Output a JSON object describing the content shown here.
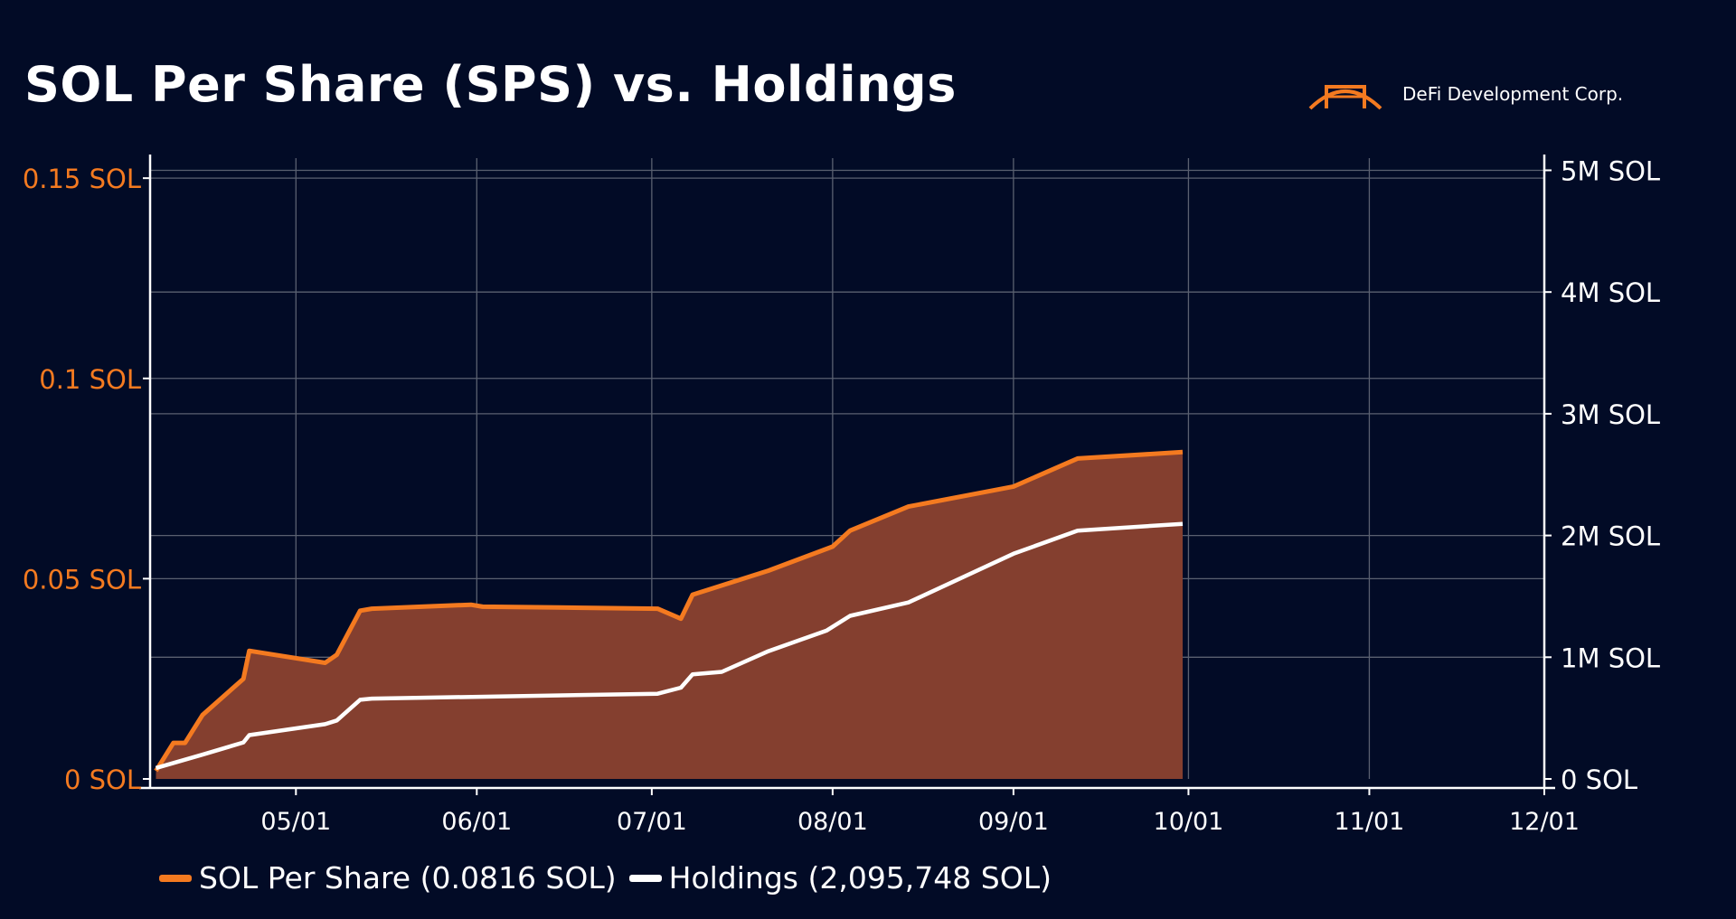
{
  "title": "SOL Per Share (SPS) vs. Holdings",
  "brand": {
    "name": "DeFi Development Corp.",
    "logo_icon": "bridge-icon",
    "logo_color": "#f47a20"
  },
  "colors": {
    "background": "#020b26",
    "sps": "#f47a20",
    "sps_fill": "#843f2f",
    "holdings": "#ffffff",
    "grid": "#5a6070",
    "left_axis_text": "#f47a20",
    "right_axis_text": "#ffffff"
  },
  "chart_data": {
    "type": "line",
    "x_axis": {
      "range": [
        "2025-04-06",
        "2025-12-01"
      ],
      "tick_labels": [
        "05/01",
        "06/01",
        "07/01",
        "08/01",
        "09/01",
        "10/01",
        "11/01",
        "12/01"
      ],
      "tick_dates": [
        "2025-05-01",
        "2025-06-01",
        "2025-07-01",
        "2025-08-01",
        "2025-09-01",
        "2025-10-01",
        "2025-11-01",
        "2025-12-01"
      ]
    },
    "y_left": {
      "range": [
        0,
        0.155
      ],
      "ticks": [
        0,
        0.05,
        0.1,
        0.15
      ],
      "tick_labels": [
        "0 SOL",
        "0.05 SOL",
        "0.1 SOL",
        "0.15 SOL"
      ]
    },
    "y_right": {
      "range": [
        0,
        5.1
      ],
      "ticks": [
        0,
        1,
        2,
        3,
        4,
        5
      ],
      "tick_labels": [
        "0 SOL",
        "1M SOL",
        "2M SOL",
        "3M SOL",
        "4M SOL",
        "5M SOL"
      ],
      "unit": "million SOL"
    },
    "grid": true,
    "legend_position": "bottom-left",
    "series": [
      {
        "name": "SOL Per Share (0.0816 SOL)",
        "axis": "left",
        "fill": true,
        "points": [
          [
            "2025-04-07",
            0.002
          ],
          [
            "2025-04-10",
            0.009
          ],
          [
            "2025-04-12",
            0.009
          ],
          [
            "2025-04-15",
            0.016
          ],
          [
            "2025-04-22",
            0.025
          ],
          [
            "2025-04-23",
            0.032
          ],
          [
            "2025-05-06",
            0.029
          ],
          [
            "2025-05-08",
            0.031
          ],
          [
            "2025-05-12",
            0.042
          ],
          [
            "2025-05-14",
            0.0425
          ],
          [
            "2025-05-31",
            0.0435
          ],
          [
            "2025-06-02",
            0.043
          ],
          [
            "2025-06-15",
            0.0428
          ],
          [
            "2025-07-02",
            0.0425
          ],
          [
            "2025-07-06",
            0.04
          ],
          [
            "2025-07-08",
            0.046
          ],
          [
            "2025-07-21",
            0.052
          ],
          [
            "2025-08-01",
            0.058
          ],
          [
            "2025-08-04",
            0.062
          ],
          [
            "2025-08-14",
            0.068
          ],
          [
            "2025-09-01",
            0.073
          ],
          [
            "2025-09-12",
            0.08
          ],
          [
            "2025-09-30",
            0.0816
          ]
        ]
      },
      {
        "name": "Holdings (2,095,748 SOL)",
        "axis": "right",
        "fill": false,
        "points": [
          [
            "2025-04-07",
            0.09
          ],
          [
            "2025-04-15",
            0.2
          ],
          [
            "2025-04-22",
            0.3
          ],
          [
            "2025-04-23",
            0.36
          ],
          [
            "2025-05-06",
            0.45
          ],
          [
            "2025-05-08",
            0.48
          ],
          [
            "2025-05-12",
            0.65
          ],
          [
            "2025-05-14",
            0.66
          ],
          [
            "2025-07-02",
            0.7
          ],
          [
            "2025-07-06",
            0.75
          ],
          [
            "2025-07-08",
            0.86
          ],
          [
            "2025-07-13",
            0.88
          ],
          [
            "2025-07-21",
            1.05
          ],
          [
            "2025-07-31",
            1.22
          ],
          [
            "2025-08-04",
            1.34
          ],
          [
            "2025-08-14",
            1.45
          ],
          [
            "2025-09-01",
            1.85
          ],
          [
            "2025-09-12",
            2.04
          ],
          [
            "2025-09-30",
            2.095748
          ]
        ]
      }
    ]
  }
}
